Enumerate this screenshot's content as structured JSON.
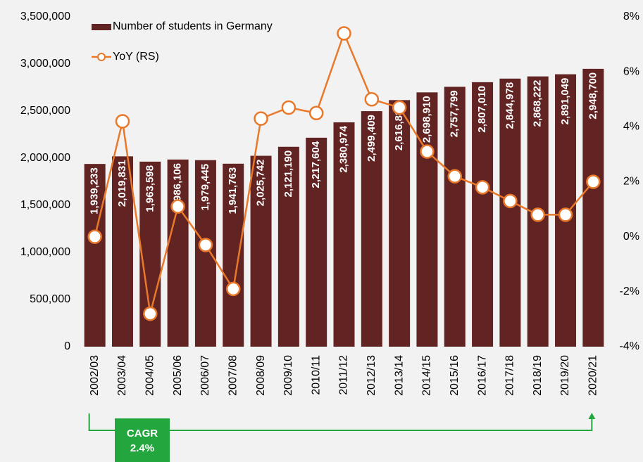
{
  "chart_data": {
    "type": "bar-line",
    "categories": [
      "2002/03",
      "2003/04",
      "2004/05",
      "2005/06",
      "2006/07",
      "2007/08",
      "2008/09",
      "2009/10",
      "2010/11",
      "2011/12",
      "2012/13",
      "2013/14",
      "2014/15",
      "2015/16",
      "2016/17",
      "2017/18",
      "2018/19",
      "2019/20",
      "2020/21"
    ],
    "series": [
      {
        "name": "Number of students in Germany",
        "type": "bar",
        "color": "#622323",
        "values": [
          1939233,
          2019831,
          1963598,
          1986106,
          1979445,
          1941763,
          2025742,
          2121190,
          2217604,
          2380974,
          2499409,
          2616881,
          2698910,
          2757799,
          2807010,
          2844978,
          2868222,
          2891049,
          2948700
        ],
        "value_labels": [
          "1,939,233",
          "2,019,831",
          "1,963,598",
          "1,986,106",
          "1,979,445",
          "1,941,763",
          "2,025,742",
          "2,121,190",
          "2,217,604",
          "2,380,974",
          "2,499,409",
          "2,616,881",
          "2,698,910",
          "2,757,799",
          "2,807,010",
          "2,844,978",
          "2,868,222",
          "2,891,049",
          "2,948,700"
        ]
      },
      {
        "name": "YoY (RS)",
        "type": "line",
        "axis": "y2",
        "color": "#e8782a",
        "values": [
          0,
          4.2,
          -2.8,
          1.1,
          -0.3,
          -1.9,
          4.3,
          4.7,
          4.5,
          7.4,
          5.0,
          4.7,
          3.1,
          2.2,
          1.8,
          1.3,
          0.8,
          0.8,
          2.0
        ]
      }
    ],
    "ylim": [
      0,
      3500000
    ],
    "yticks": [
      0,
      {
        "value": 500000,
        "label": "500,000"
      },
      {
        "value": 1000000,
        "label": "1,000,000"
      },
      {
        "value": 1500000,
        "label": "1,500,000"
      },
      {
        "value": 2000000,
        "label": "2,000,000"
      },
      {
        "value": 2500000,
        "label": "2,500,000"
      },
      {
        "value": 3000000,
        "label": "3,000,000"
      },
      {
        "value": 3500000,
        "label": "3,500,000"
      }
    ],
    "y2lim": [
      -4,
      8
    ],
    "y2ticks": [
      {
        "value": -4,
        "label": "-4%"
      },
      {
        "value": -2,
        "label": "-2%"
      },
      {
        "value": 0,
        "label": "0%"
      },
      {
        "value": 2,
        "label": "2%"
      },
      {
        "value": 4,
        "label": "4%"
      },
      {
        "value": 6,
        "label": "6%"
      },
      {
        "value": 8,
        "label": "8%"
      }
    ],
    "legend": "top-left",
    "annotation": {
      "title": "CAGR",
      "value_label": "2.4%",
      "color": "#22a63d"
    }
  }
}
